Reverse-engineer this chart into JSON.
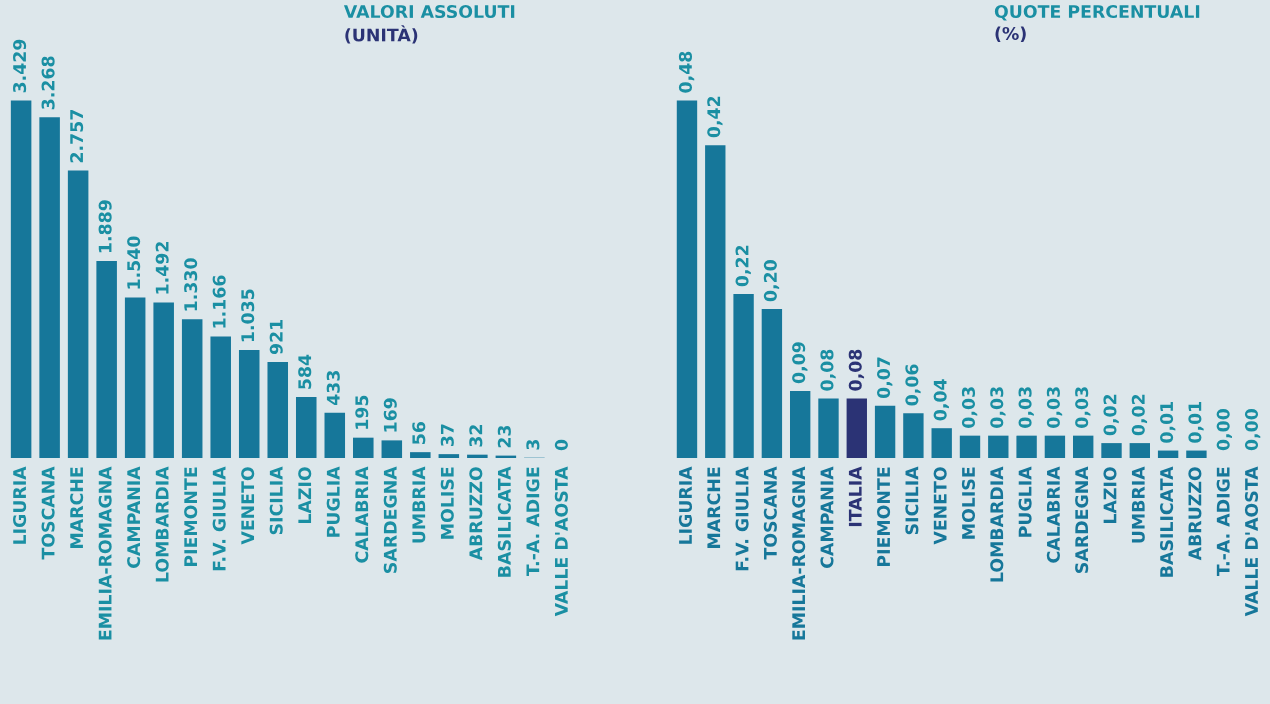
{
  "chart_data": [
    {
      "type": "bar",
      "title": "VALORI ASSOLUTI",
      "subtitle": "(UNITÀ)",
      "tick_labels": "x",
      "data_labels": true,
      "categories": [
        "LIGURIA",
        "TOSCANA",
        "MARCHE",
        "EMILIA-ROMAGNA",
        "CAMPANIA",
        "LOMBARDIA",
        "PIEMONTE",
        "F.V. GIULIA",
        "VENETO",
        "SICILIA",
        "LAZIO",
        "PUGLIA",
        "CALABRIA",
        "SARDEGNA",
        "UMBRIA",
        "MOLISE",
        "ABRUZZO",
        "BASILICATA",
        "T.-A. ADIGE",
        "VALLE D'AOSTA"
      ],
      "values": [
        3429,
        3268,
        2757,
        1889,
        1540,
        1492,
        1330,
        1166,
        1035,
        921,
        584,
        433,
        195,
        169,
        56,
        37,
        32,
        23,
        3,
        0
      ],
      "value_labels": [
        "3.429",
        "3.268",
        "2.757",
        "1.889",
        "1.540",
        "1.492",
        "1.330",
        "1.166",
        "1.035",
        "921",
        "584",
        "433",
        "195",
        "169",
        "56",
        "37",
        "32",
        "23",
        "3",
        "0"
      ],
      "color": "#16779a"
    },
    {
      "type": "bar",
      "title": "QUOTE PERCENTUALI",
      "subtitle": "(%)",
      "tick_labels": "x",
      "data_labels": true,
      "categories": [
        "LIGURIA",
        "MARCHE",
        "F.V. GIULIA",
        "TOSCANA",
        "EMILIA-ROMAGNA",
        "CAMPANIA",
        "ITALIA",
        "PIEMONTE",
        "SICILIA",
        "VENETO",
        "MOLISE",
        "LOMBARDIA",
        "PUGLIA",
        "CALABRIA",
        "SARDEGNA",
        "LAZIO",
        "UMBRIA",
        "BASILICATA",
        "ABRUZZO",
        "T.-A. ADIGE",
        "VALLE D'AOSTA"
      ],
      "values": [
        0.48,
        0.42,
        0.22,
        0.2,
        0.09,
        0.08,
        0.08,
        0.07,
        0.06,
        0.04,
        0.03,
        0.03,
        0.03,
        0.03,
        0.03,
        0.02,
        0.02,
        0.01,
        0.01,
        0.0,
        0.0
      ],
      "value_labels": [
        "0,48",
        "0,42",
        "0,22",
        "0,20",
        "0,09",
        "0,08",
        "0,08",
        "0,07",
        "0,06",
        "0,04",
        "0,03",
        "0,03",
        "0,03",
        "0,03",
        "0,03",
        "0,02",
        "0,02",
        "0,01",
        "0,01",
        "0,00",
        "0,00"
      ],
      "colors": [
        "#16779a",
        "#16779a",
        "#16779a",
        "#16779a",
        "#16779a",
        "#16779a",
        "#2b3375",
        "#16779a",
        "#16779a",
        "#16779a",
        "#16779a",
        "#16779a",
        "#16779a",
        "#16779a",
        "#16779a",
        "#16779a",
        "#16779a",
        "#16779a",
        "#16779a",
        "#16779a",
        "#16779a"
      ]
    }
  ]
}
